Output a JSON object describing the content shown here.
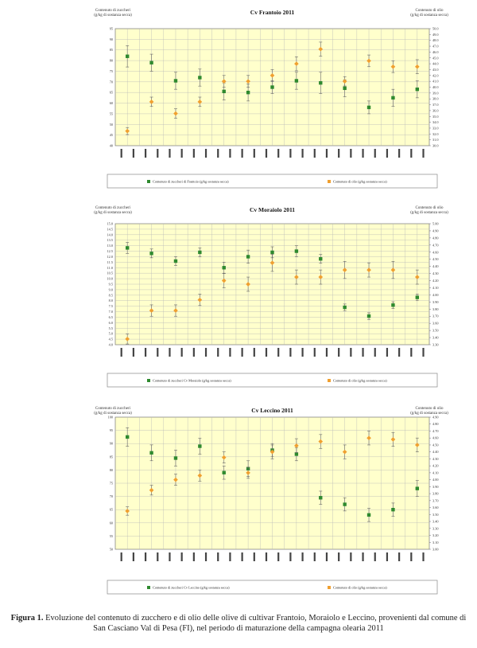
{
  "charts": [
    {
      "type": "scatter",
      "title": "Cv Frantoio 2011",
      "ylabel_left": "Contenuto di zuccheri (g/kg di sostanza secca)",
      "ylabel_right": "Contenuto di olio (g/kg di sostanza secca)",
      "left_ticks": [
        "95",
        "90",
        "85",
        "80",
        "75",
        "70",
        "65",
        "60",
        "55",
        "50",
        "45",
        "40"
      ],
      "right_ticks": [
        "50.0",
        "49.0",
        "48.0",
        "47.0",
        "46.0",
        "45.0",
        "44.0",
        "43.0",
        "42.0",
        "41.0",
        "40.0",
        "39.0",
        "38.0",
        "37.0",
        "36.0",
        "35.0",
        "34.0",
        "33.0",
        "32.0",
        "31.0",
        "30.0"
      ],
      "ylim_left": [
        40,
        95
      ],
      "ylim_right": [
        30,
        50
      ],
      "n_slots": 21,
      "series": [
        {
          "name": "Contenuto di zuccheri di Frantoio (g/kg sostanza secca)",
          "axis": "left",
          "color": "#2f8a2f",
          "points": [
            [
              1,
              82.0,
              5
            ],
            [
              3,
              79.0,
              4
            ],
            [
              5,
              70.5,
              4
            ],
            [
              7,
              72.0,
              4
            ],
            [
              9,
              65.5,
              4
            ],
            [
              11,
              65.0,
              4
            ],
            [
              13,
              67.5,
              3
            ],
            [
              15,
              70.5,
              4
            ],
            [
              17,
              69.5,
              5
            ],
            [
              19,
              67.0,
              4
            ],
            [
              21,
              58.0,
              3
            ],
            [
              23,
              62.5,
              4
            ],
            [
              25,
              66.5,
              4
            ]
          ]
        },
        {
          "name": "Contenuto di olio (g/kg sostanza secca)",
          "axis": "right",
          "color": "#f0a030",
          "points": [
            [
              1,
              32.5,
              0.6
            ],
            [
              3,
              37.5,
              0.8
            ],
            [
              5,
              35.5,
              0.8
            ],
            [
              7,
              37.5,
              0.8
            ],
            [
              9,
              41.0,
              1.0
            ],
            [
              11,
              41.0,
              1.0
            ],
            [
              13,
              42.0,
              1.0
            ],
            [
              15,
              44.0,
              1.2
            ],
            [
              17,
              46.5,
              1.2
            ],
            [
              19,
              41.0,
              0.8
            ],
            [
              21,
              44.5,
              1.0
            ],
            [
              23,
              43.5,
              1.0
            ],
            [
              25,
              43.5,
              1.2
            ]
          ]
        }
      ]
    },
    {
      "type": "scatter",
      "title": "Cv Moraiolo 2011",
      "ylabel_left": "Contenuto di zuccheri (g/kg di sostanza secca)",
      "ylabel_right": "Contenuto di olio (g/kg di sostanza secca)",
      "left_ticks": [
        "15.0",
        "14.5",
        "14.0",
        "13.5",
        "13.0",
        "12.5",
        "12.0",
        "11.5",
        "11.0",
        "10.5",
        "10.0",
        "9.5",
        "9.0",
        "8.5",
        "8.0",
        "7.5",
        "7.0",
        "6.5",
        "6.0",
        "5.5",
        "5.0",
        "4.5",
        "4.0"
      ],
      "right_ticks": [
        "5.00",
        "4.90",
        "4.80",
        "4.70",
        "4.60",
        "4.50",
        "4.40",
        "4.30",
        "4.20",
        "4.10",
        "4.00",
        "3.90",
        "3.80",
        "3.70",
        "3.60",
        "3.50",
        "3.40",
        "3.30"
      ],
      "ylim_left": [
        4,
        15
      ],
      "ylim_right": [
        3.3,
        5.0
      ],
      "n_slots": 21,
      "series": [
        {
          "name": "Contenuto di zuccheri Cv Moraiolo (g/kg sostanza secca)",
          "axis": "left",
          "color": "#2f8a2f",
          "points": [
            [
              1,
              12.8,
              0.5
            ],
            [
              3,
              12.3,
              0.4
            ],
            [
              5,
              11.6,
              0.4
            ],
            [
              7,
              12.4,
              0.4
            ],
            [
              9,
              11.0,
              0.5
            ],
            [
              11,
              12.0,
              0.6
            ],
            [
              13,
              12.4,
              0.5
            ],
            [
              15,
              12.5,
              0.5
            ],
            [
              17,
              11.8,
              0.4
            ],
            [
              19,
              7.4,
              0.3
            ],
            [
              21,
              6.6,
              0.3
            ],
            [
              23,
              7.6,
              0.3
            ],
            [
              25,
              8.3,
              0.3
            ]
          ]
        },
        {
          "name": "Contenuto di olio (g/kg sostanza secca)",
          "axis": "right",
          "color": "#f0a030",
          "points": [
            [
              1,
              3.38,
              0.07
            ],
            [
              3,
              3.78,
              0.08
            ],
            [
              5,
              3.78,
              0.08
            ],
            [
              7,
              3.93,
              0.08
            ],
            [
              9,
              4.2,
              0.1
            ],
            [
              11,
              4.15,
              0.1
            ],
            [
              13,
              4.45,
              0.12
            ],
            [
              15,
              4.25,
              0.1
            ],
            [
              17,
              4.25,
              0.1
            ],
            [
              19,
              4.35,
              0.12
            ],
            [
              21,
              4.35,
              0.1
            ],
            [
              23,
              4.35,
              0.12
            ],
            [
              25,
              4.25,
              0.1
            ]
          ]
        }
      ]
    },
    {
      "type": "scatter",
      "title": "Cv Leccino 2011",
      "ylabel_left": "Contenuto di zuccheri (g/kg di sostanza secca)",
      "ylabel_right": "Contenuto di olio (g/kg di sostanza secca)",
      "left_ticks": [
        "100",
        "95",
        "90",
        "85",
        "80",
        "75",
        "70",
        "65",
        "60",
        "55",
        "50"
      ],
      "right_ticks": [
        "4.90",
        "4.80",
        "4.70",
        "4.60",
        "4.50",
        "4.40",
        "4.30",
        "4.20",
        "4.10",
        "4.00",
        "3.90",
        "3.80",
        "3.70",
        "3.60",
        "3.50",
        "3.40",
        "3.30",
        "3.20",
        "3.10",
        "3.00"
      ],
      "ylim_left": [
        50,
        100
      ],
      "ylim_right": [
        3.0,
        4.9
      ],
      "n_slots": 21,
      "series": [
        {
          "name": "Contenuto di zuccheri Cv Leccino (g/kg sostanza secca)",
          "axis": "left",
          "color": "#2f8a2f",
          "points": [
            [
              1,
              92.5,
              3.5
            ],
            [
              3,
              86.5,
              3
            ],
            [
              5,
              84.5,
              3
            ],
            [
              7,
              89.0,
              3
            ],
            [
              9,
              79.0,
              2.5
            ],
            [
              11,
              80.5,
              3
            ],
            [
              13,
              87.5,
              2.5
            ],
            [
              15,
              86.0,
              2.5
            ],
            [
              17,
              69.5,
              2.5
            ],
            [
              19,
              67.0,
              2.5
            ],
            [
              21,
              63.0,
              2.5
            ],
            [
              23,
              65.0,
              2.5
            ],
            [
              25,
              73.0,
              3
            ]
          ]
        },
        {
          "name": "Contenuto di olio (g/kg sostanza secca)",
          "axis": "right",
          "color": "#f0a030",
          "points": [
            [
              1,
              3.55,
              0.06
            ],
            [
              3,
              3.85,
              0.07
            ],
            [
              5,
              4.0,
              0.08
            ],
            [
              7,
              4.06,
              0.08
            ],
            [
              9,
              4.32,
              0.08
            ],
            [
              11,
              4.1,
              0.08
            ],
            [
              13,
              4.4,
              0.1
            ],
            [
              15,
              4.49,
              0.1
            ],
            [
              17,
              4.55,
              0.1
            ],
            [
              19,
              4.4,
              0.1
            ],
            [
              21,
              4.6,
              0.1
            ],
            [
              23,
              4.58,
              0.1
            ],
            [
              25,
              4.5,
              0.1
            ]
          ]
        }
      ]
    }
  ],
  "caption_bold": "Figura 1.",
  "caption_text": " Evoluzione del contenuto di zucchero e di olio delle olive di cultivar Frantoio, Moraiolo e Leccino, provenienti dal comune di San Casciano Val di Pesa (FI), nel periodo di maturazione della campagna olearia 2011",
  "colors": {
    "plot_bg": "#ffffcc",
    "grid": "#b7b7b7",
    "green": "#2f8a2f",
    "orange": "#f0a030"
  }
}
